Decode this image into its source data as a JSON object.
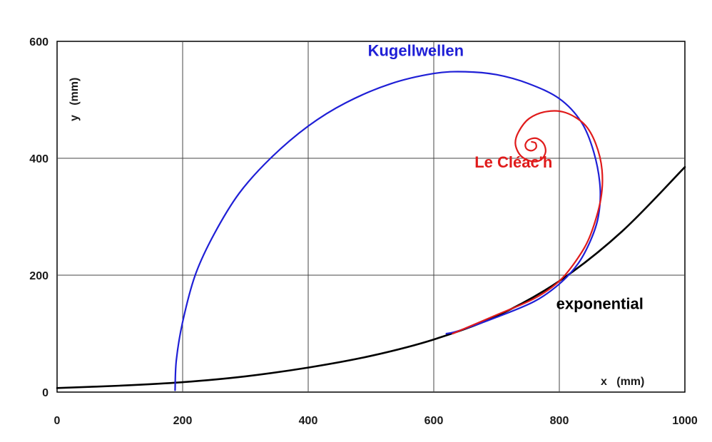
{
  "chart_data": {
    "type": "line",
    "title": "",
    "xlabel": "x   (mm)",
    "ylabel": "y   (mm)",
    "xlim": [
      0,
      1000
    ],
    "ylim": [
      0,
      600
    ],
    "x_ticks": [
      "0",
      "200",
      "400",
      "600",
      "800",
      "1000"
    ],
    "y_ticks": [
      "0",
      "200",
      "400",
      "600"
    ],
    "grid": true,
    "series": [
      {
        "name": "exponential",
        "color": "#000000",
        "points": [
          [
            0,
            7
          ],
          [
            100,
            11
          ],
          [
            200,
            17
          ],
          [
            300,
            27
          ],
          [
            400,
            42
          ],
          [
            500,
            62
          ],
          [
            600,
            90
          ],
          [
            700,
            130
          ],
          [
            800,
            190
          ],
          [
            900,
            275
          ],
          [
            1000,
            385
          ]
        ]
      },
      {
        "name": "Kugellwellen",
        "color": "#1f1fd6",
        "points": [
          [
            188,
            3
          ],
          [
            190,
            55
          ],
          [
            200,
            120
          ],
          [
            220,
            200
          ],
          [
            250,
            270
          ],
          [
            290,
            340
          ],
          [
            340,
            400
          ],
          [
            400,
            455
          ],
          [
            460,
            495
          ],
          [
            530,
            527
          ],
          [
            600,
            545
          ],
          [
            650,
            548
          ],
          [
            700,
            543
          ],
          [
            750,
            528
          ],
          [
            800,
            502
          ],
          [
            835,
            462
          ],
          [
            855,
            410
          ],
          [
            865,
            350
          ],
          [
            862,
            300
          ],
          [
            850,
            260
          ],
          [
            830,
            220
          ],
          [
            800,
            185
          ],
          [
            760,
            155
          ],
          [
            700,
            128
          ],
          [
            640,
            105
          ],
          [
            620,
            100
          ]
        ]
      },
      {
        "name": "Le Cléac'h",
        "color": "#e01b1b",
        "points": [
          [
            630,
            100
          ],
          [
            700,
            132
          ],
          [
            760,
            160
          ],
          [
            800,
            190
          ],
          [
            830,
            230
          ],
          [
            850,
            270
          ],
          [
            866,
            330
          ],
          [
            868,
            380
          ],
          [
            858,
            425
          ],
          [
            840,
            458
          ],
          [
            810,
            478
          ],
          [
            780,
            480
          ],
          [
            752,
            468
          ],
          [
            735,
            445
          ],
          [
            730,
            425
          ],
          [
            738,
            405
          ],
          [
            755,
            395
          ],
          [
            770,
            397
          ],
          [
            778,
            410
          ],
          [
            775,
            425
          ],
          [
            764,
            434
          ],
          [
            752,
            432
          ],
          [
            746,
            424
          ],
          [
            748,
            416
          ],
          [
            756,
            413
          ],
          [
            763,
            418
          ],
          [
            762,
            426
          ],
          [
            756,
            428
          ]
        ]
      }
    ],
    "annotations": [
      {
        "text": "Kugellwellen",
        "x": 495,
        "y": 575
      },
      {
        "text": "Le Cléac'h",
        "x": 665,
        "y": 384
      },
      {
        "text": "exponential",
        "x": 795,
        "y": 142
      }
    ]
  }
}
